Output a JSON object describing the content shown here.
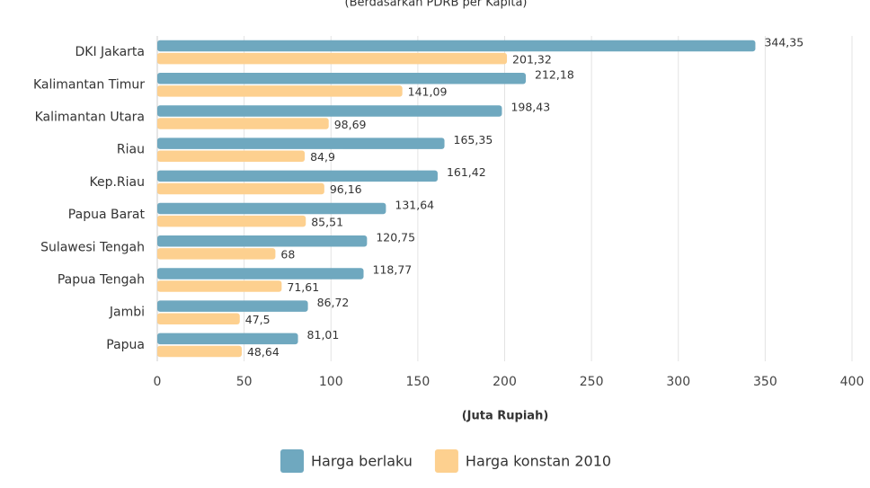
{
  "chart_data": {
    "type": "bar",
    "orientation": "horizontal",
    "subtitle": "(Berdasarkan PDRB per Kapita)",
    "x_label": "(Juta Rupiah)",
    "categories": [
      "DKI Jakarta",
      "Kalimantan Timur",
      "Kalimantan Utara",
      "Riau",
      "Kep.Riau",
      "Papua Barat",
      "Sulawesi Tengah",
      "Papua Tengah",
      "Jambi",
      "Papua"
    ],
    "series": [
      {
        "name": "Harga berlaku",
        "color": "#6fa8bf",
        "values": [
          344.35,
          212.18,
          198.43,
          165.35,
          161.42,
          131.64,
          120.75,
          118.77,
          86.72,
          81.01
        ],
        "value_labels": [
          "344,35",
          "212,18",
          "198,43",
          "165,35",
          "161,42",
          "131,64",
          "120,75",
          "118,77",
          "86,72",
          "81,01"
        ]
      },
      {
        "name": "Harga konstan 2010",
        "color": "#fdd08f",
        "values": [
          201.32,
          141.09,
          98.69,
          84.9,
          96.16,
          85.51,
          68,
          71.61,
          47.5,
          48.64
        ],
        "value_labels": [
          "201,32",
          "141,09",
          "98,69",
          "84,9",
          "96,16",
          "85,51",
          "68",
          "71,61",
          "47,5",
          "48,64"
        ]
      }
    ],
    "xlim": [
      0,
      400
    ],
    "xticks": [
      0,
      50,
      100,
      150,
      200,
      250,
      300,
      350,
      400
    ],
    "grid": true,
    "legend": "bottom"
  }
}
